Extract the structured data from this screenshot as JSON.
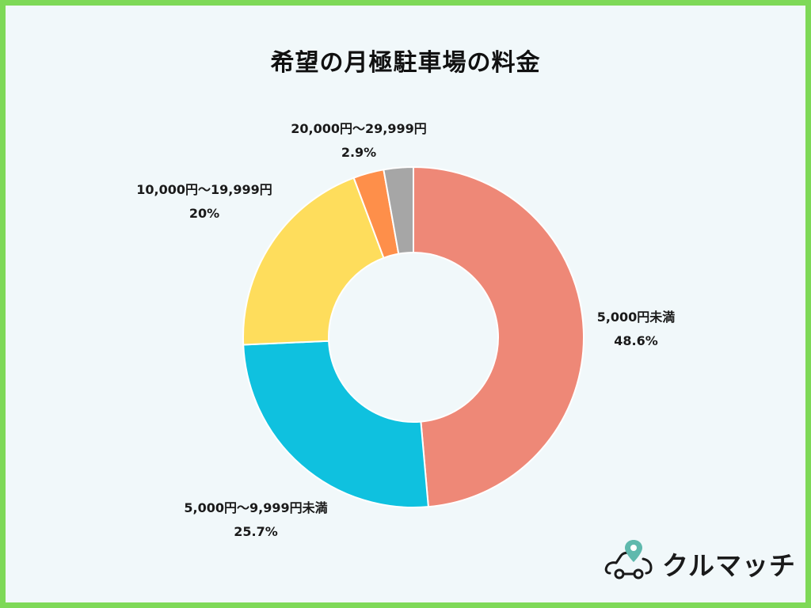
{
  "chart_data": {
    "type": "pie",
    "variant": "donut",
    "title": "希望の月極駐車場の料金",
    "start_angle_deg": 0,
    "direction": "clockwise",
    "slices": [
      {
        "label": "5,000円未満",
        "value": 48.6,
        "value_label": "48.6%",
        "color": "#ee8877"
      },
      {
        "label": "5,000円〜9,999円未満",
        "value": 25.7,
        "value_label": "25.7%",
        "color": "#0fc1df"
      },
      {
        "label": "10,000円〜19,999円",
        "value": 20,
        "value_label": "20%",
        "color": "#fedd5c"
      },
      {
        "label": "20,000円〜29,999円",
        "value": 2.9,
        "value_label": "2.9%",
        "color": "#fe8f4a"
      },
      {
        "label": "",
        "value": 2.8,
        "value_label": "",
        "color": "#a6a6a6"
      }
    ]
  },
  "brand": {
    "logo_text": "クルマッチ",
    "logo_icon": "car-location-pin-icon",
    "accent_color": "#5fb9ad",
    "border_color": "#7ed957"
  }
}
